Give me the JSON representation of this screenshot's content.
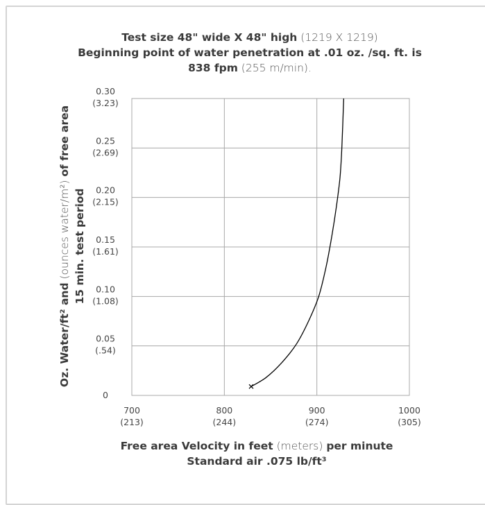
{
  "chart_data": {
    "type": "line",
    "title": {
      "line1_bold": "Test size 48\" wide X 48\" high",
      "line1_light": "(1219 X 1219)",
      "line2_bold": "Beginning point of water penetration at .01 oz. /sq. ft. is",
      "line3_bold": "838 fpm",
      "line3_light": "(255 m/min)."
    },
    "xlabel": {
      "line1_bold_a": "Free area Velocity in feet",
      "line1_light": "(meters)",
      "line1_bold_b": "per minute",
      "line2": "Standard air .075 lb/ft³"
    },
    "ylabel": {
      "line1_bold_a": "Oz. Water/ft² and",
      "line1_light": "(ounces water/m²)",
      "line1_bold_b": "of free area",
      "line2": "15 min. test period"
    },
    "x_ticks": [
      {
        "value": 700,
        "main": "700",
        "sub": "(213)"
      },
      {
        "value": 800,
        "main": "800",
        "sub": "(244)"
      },
      {
        "value": 900,
        "main": "900",
        "sub": "(274)"
      },
      {
        "value": 1000,
        "main": "1000",
        "sub": "(305)"
      }
    ],
    "y_ticks": [
      {
        "value": 0,
        "main": "0",
        "sub": ""
      },
      {
        "value": 0.05,
        "main": "0.05",
        "sub": "(.54)"
      },
      {
        "value": 0.1,
        "main": "0.10",
        "sub": "(1.08)"
      },
      {
        "value": 0.15,
        "main": "0.15",
        "sub": "(1.61)"
      },
      {
        "value": 0.2,
        "main": "0.20",
        "sub": "(2.15)"
      },
      {
        "value": 0.25,
        "main": "0.25",
        "sub": "(2.69)"
      },
      {
        "value": 0.3,
        "main": "0.30",
        "sub": "(3.23)"
      }
    ],
    "xlim": [
      700,
      1000
    ],
    "ylim": [
      0,
      0.3
    ],
    "grid": true,
    "series": [
      {
        "x": [
          829,
          845,
          862,
          878,
          891,
          902,
          910,
          916,
          921,
          925,
          927,
          929
        ],
        "y": [
          0.009,
          0.018,
          0.033,
          0.052,
          0.075,
          0.1,
          0.13,
          0.16,
          0.19,
          0.22,
          0.25,
          0.3
        ],
        "color": "#000000"
      }
    ],
    "start_marker": {
      "x": 829,
      "y": 0.009,
      "symbol": "x"
    }
  }
}
